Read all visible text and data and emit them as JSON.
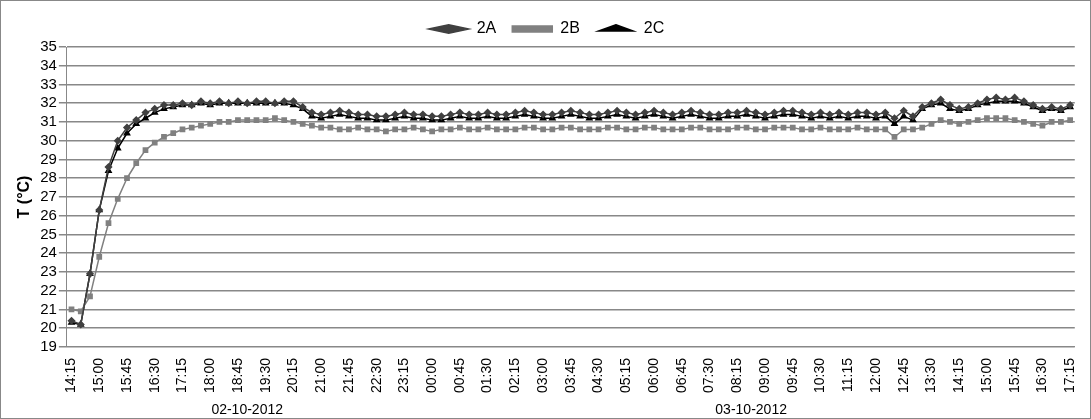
{
  "chart_data": {
    "type": "line",
    "ylabel": "T (°C)",
    "categories": [
      "14:15",
      null,
      null,
      "15:00",
      null,
      null,
      "15:45",
      null,
      null,
      "16:30",
      null,
      null,
      "17:15",
      null,
      null,
      "18:00",
      null,
      null,
      "18:45",
      null,
      null,
      "19:30",
      null,
      null,
      "20:15",
      null,
      null,
      "21:00",
      null,
      null,
      "21:45",
      null,
      null,
      "22:30",
      null,
      null,
      "23:15",
      null,
      null,
      "00:00",
      null,
      null,
      "00:45",
      null,
      null,
      "01:30",
      null,
      null,
      "02:15",
      null,
      null,
      "03:00",
      null,
      null,
      "03:45",
      null,
      null,
      "04:30",
      null,
      null,
      "05:15",
      null,
      null,
      "06:00",
      null,
      null,
      "06:45",
      null,
      null,
      "07:30",
      null,
      null,
      "08:15",
      null,
      null,
      "09:00",
      null,
      null,
      "09:45",
      null,
      null,
      "10:30",
      null,
      null,
      "11:15",
      null,
      null,
      "12:00",
      null,
      null,
      "12:45",
      null,
      null,
      "13:30",
      null,
      null,
      "14:15",
      null,
      null,
      "15:00",
      null,
      null,
      "15:45",
      null,
      null,
      "16:30",
      null,
      null,
      "17:15"
    ],
    "series": [
      {
        "name": "2A",
        "color": "#404040",
        "marker": "diamond",
        "values": [
          20.4,
          20.2,
          22.9,
          26.3,
          28.6,
          30.0,
          30.7,
          31.1,
          31.5,
          31.7,
          31.9,
          31.9,
          32.0,
          31.9,
          32.1,
          32.0,
          32.1,
          32.0,
          32.1,
          32.0,
          32.1,
          32.1,
          32.0,
          32.1,
          32.1,
          31.8,
          31.5,
          31.4,
          31.5,
          31.6,
          31.5,
          31.4,
          31.4,
          31.3,
          31.3,
          31.4,
          31.5,
          31.4,
          31.4,
          31.3,
          31.3,
          31.4,
          31.5,
          31.4,
          31.4,
          31.5,
          31.4,
          31.4,
          31.5,
          31.6,
          31.5,
          31.4,
          31.4,
          31.5,
          31.6,
          31.5,
          31.4,
          31.4,
          31.5,
          31.6,
          31.5,
          31.4,
          31.5,
          31.6,
          31.5,
          31.4,
          31.5,
          31.6,
          31.5,
          31.4,
          31.4,
          31.5,
          31.5,
          31.6,
          31.5,
          31.4,
          31.5,
          31.6,
          31.6,
          31.5,
          31.4,
          31.5,
          31.4,
          31.5,
          31.4,
          31.5,
          31.5,
          31.4,
          31.5,
          31.2,
          31.6,
          31.3,
          31.8,
          32.0,
          32.2,
          31.9,
          31.7,
          31.8,
          32.0,
          32.2,
          32.3,
          32.2,
          32.3,
          32.1,
          31.9,
          31.7,
          31.8,
          31.7,
          31.9
        ]
      },
      {
        "name": "2B",
        "color": "#808080",
        "marker": "square",
        "values": [
          21.0,
          20.9,
          21.7,
          23.8,
          25.6,
          26.9,
          28.0,
          28.8,
          29.5,
          29.9,
          30.2,
          30.4,
          30.6,
          30.7,
          30.8,
          30.9,
          31.0,
          31.0,
          31.1,
          31.1,
          31.1,
          31.1,
          31.2,
          31.1,
          31.0,
          30.9,
          30.8,
          30.7,
          30.7,
          30.6,
          30.6,
          30.7,
          30.6,
          30.6,
          30.5,
          30.6,
          30.6,
          30.7,
          30.6,
          30.5,
          30.6,
          30.6,
          30.7,
          30.6,
          30.6,
          30.7,
          30.6,
          30.6,
          30.6,
          30.7,
          30.7,
          30.6,
          30.6,
          30.7,
          30.7,
          30.6,
          30.6,
          30.6,
          30.7,
          30.7,
          30.6,
          30.6,
          30.7,
          30.7,
          30.6,
          30.6,
          30.6,
          30.7,
          30.7,
          30.6,
          30.6,
          30.6,
          30.7,
          30.7,
          30.6,
          30.6,
          30.7,
          30.7,
          30.7,
          30.6,
          30.6,
          30.7,
          30.6,
          30.6,
          30.6,
          30.7,
          30.6,
          30.6,
          30.6,
          30.2,
          30.6,
          30.6,
          30.7,
          30.9,
          31.1,
          31.0,
          30.9,
          31.0,
          31.1,
          31.2,
          31.2,
          31.2,
          31.1,
          31.0,
          30.9,
          30.8,
          31.0,
          31.0,
          31.1
        ]
      },
      {
        "name": "2C",
        "color": "#000000",
        "marker": "triangle",
        "values": [
          20.3,
          20.2,
          22.9,
          26.3,
          28.4,
          29.6,
          30.4,
          30.9,
          31.2,
          31.5,
          31.7,
          31.8,
          31.9,
          31.9,
          32.0,
          31.9,
          32.0,
          32.0,
          32.0,
          32.0,
          32.0,
          32.0,
          32.0,
          32.0,
          31.9,
          31.7,
          31.3,
          31.2,
          31.3,
          31.4,
          31.3,
          31.2,
          31.2,
          31.1,
          31.1,
          31.2,
          31.3,
          31.2,
          31.2,
          31.1,
          31.1,
          31.2,
          31.3,
          31.2,
          31.2,
          31.3,
          31.2,
          31.2,
          31.3,
          31.4,
          31.3,
          31.2,
          31.2,
          31.3,
          31.4,
          31.3,
          31.2,
          31.2,
          31.3,
          31.4,
          31.3,
          31.2,
          31.3,
          31.4,
          31.3,
          31.2,
          31.3,
          31.4,
          31.3,
          31.2,
          31.2,
          31.3,
          31.3,
          31.4,
          31.3,
          31.2,
          31.3,
          31.4,
          31.4,
          31.3,
          31.2,
          31.3,
          31.2,
          31.3,
          31.2,
          31.3,
          31.3,
          31.2,
          31.3,
          30.9,
          31.3,
          31.1,
          31.7,
          31.9,
          32.0,
          31.7,
          31.6,
          31.7,
          31.9,
          32.0,
          32.1,
          32.1,
          32.1,
          32.0,
          31.8,
          31.6,
          31.7,
          31.6,
          31.8
        ]
      }
    ],
    "ylim": [
      19,
      35
    ],
    "yticks": [
      19,
      20,
      21,
      22,
      23,
      24,
      25,
      26,
      27,
      28,
      29,
      30,
      31,
      32,
      33,
      34,
      35
    ],
    "grid": "y",
    "legend": "top",
    "line_style": "solid",
    "annotations": [
      "02-10-2012",
      "03-10-2012"
    ]
  }
}
